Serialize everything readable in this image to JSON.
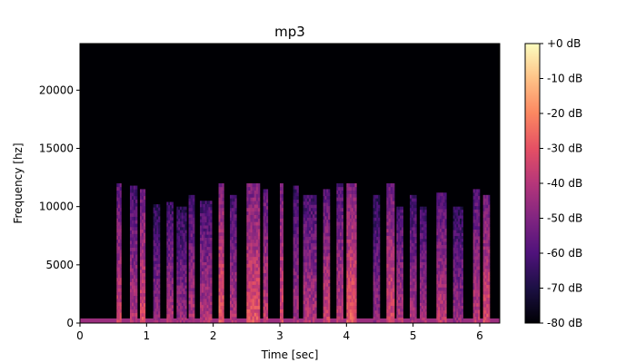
{
  "chart_data": {
    "type": "heatmap",
    "title": "mp3",
    "xlabel": "Time [sec]",
    "ylabel": "Frequency [hz]",
    "xlim": [
      0,
      6.3
    ],
    "ylim": [
      0,
      24000
    ],
    "x_ticks": [
      {
        "value": 0,
        "label": "0"
      },
      {
        "value": 1,
        "label": "1"
      },
      {
        "value": 2,
        "label": "2"
      },
      {
        "value": 3,
        "label": "3"
      },
      {
        "value": 4,
        "label": "4"
      },
      {
        "value": 5,
        "label": "5"
      },
      {
        "value": 6,
        "label": "6"
      }
    ],
    "y_ticks": [
      {
        "value": 0,
        "label": "0"
      },
      {
        "value": 5000,
        "label": "5000"
      },
      {
        "value": 10000,
        "label": "10000"
      },
      {
        "value": 15000,
        "label": "15000"
      },
      {
        "value": 20000,
        "label": "20000"
      }
    ],
    "colorbar": {
      "colormap": "magma",
      "range_db": [
        -80,
        0
      ],
      "ticks": [
        {
          "value": 0,
          "label": "+0 dB"
        },
        {
          "value": -10,
          "label": "-10 dB"
        },
        {
          "value": -20,
          "label": "-20 dB"
        },
        {
          "value": -30,
          "label": "-30 dB"
        },
        {
          "value": -40,
          "label": "-40 dB"
        },
        {
          "value": -50,
          "label": "-50 dB"
        },
        {
          "value": -60,
          "label": "-60 dB"
        },
        {
          "value": -70,
          "label": "-70 dB"
        },
        {
          "value": -80,
          "label": "-80 dB"
        }
      ]
    },
    "background_level_db": -80,
    "lowpass_cutoff_hz": 12000,
    "speech_segments": [
      {
        "start": 0.55,
        "end": 0.62,
        "top_hz": 12000,
        "level_db": -45
      },
      {
        "start": 0.75,
        "end": 0.86,
        "top_hz": 11800,
        "level_db": -50
      },
      {
        "start": 0.9,
        "end": 0.98,
        "top_hz": 11500,
        "level_db": -42
      },
      {
        "start": 1.1,
        "end": 1.2,
        "top_hz": 10200,
        "level_db": -55
      },
      {
        "start": 1.3,
        "end": 1.4,
        "top_hz": 10400,
        "level_db": -52
      },
      {
        "start": 1.45,
        "end": 1.6,
        "top_hz": 10000,
        "level_db": -55
      },
      {
        "start": 1.63,
        "end": 1.72,
        "top_hz": 11000,
        "level_db": -50
      },
      {
        "start": 1.8,
        "end": 1.98,
        "top_hz": 10500,
        "level_db": -50
      },
      {
        "start": 2.08,
        "end": 2.16,
        "top_hz": 12000,
        "level_db": -38
      },
      {
        "start": 2.25,
        "end": 2.35,
        "top_hz": 11000,
        "level_db": -50
      },
      {
        "start": 2.5,
        "end": 2.7,
        "top_hz": 12000,
        "level_db": -40
      },
      {
        "start": 2.75,
        "end": 2.82,
        "top_hz": 11500,
        "level_db": -45
      },
      {
        "start": 3.0,
        "end": 3.05,
        "top_hz": 12000,
        "level_db": -42
      },
      {
        "start": 3.2,
        "end": 3.28,
        "top_hz": 11800,
        "level_db": -52
      },
      {
        "start": 3.35,
        "end": 3.55,
        "top_hz": 11000,
        "level_db": -50
      },
      {
        "start": 3.65,
        "end": 3.75,
        "top_hz": 11500,
        "level_db": -45
      },
      {
        "start": 3.85,
        "end": 3.95,
        "top_hz": 12000,
        "level_db": -48
      },
      {
        "start": 4.0,
        "end": 4.15,
        "top_hz": 12000,
        "level_db": -38
      },
      {
        "start": 4.4,
        "end": 4.5,
        "top_hz": 11000,
        "level_db": -55
      },
      {
        "start": 4.6,
        "end": 4.72,
        "top_hz": 12000,
        "level_db": -42
      },
      {
        "start": 4.75,
        "end": 4.85,
        "top_hz": 10000,
        "level_db": -50
      },
      {
        "start": 4.95,
        "end": 5.05,
        "top_hz": 11000,
        "level_db": -52
      },
      {
        "start": 5.1,
        "end": 5.2,
        "top_hz": 10000,
        "level_db": -52
      },
      {
        "start": 5.35,
        "end": 5.5,
        "top_hz": 11200,
        "level_db": -48
      },
      {
        "start": 5.6,
        "end": 5.75,
        "top_hz": 10000,
        "level_db": -55
      },
      {
        "start": 5.9,
        "end": 6.0,
        "top_hz": 11500,
        "level_db": -48
      },
      {
        "start": 6.05,
        "end": 6.15,
        "top_hz": 11000,
        "level_db": -42
      }
    ]
  }
}
